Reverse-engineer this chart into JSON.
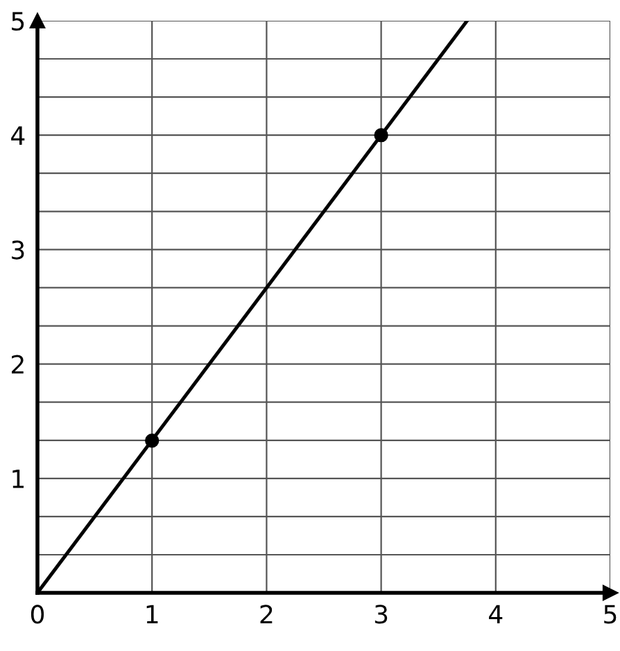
{
  "chart_data": {
    "type": "line",
    "xlim": [
      0,
      5
    ],
    "ylim": [
      0,
      5
    ],
    "xticks": [
      0,
      1,
      2,
      3,
      4,
      5
    ],
    "yticks": [
      {
        "value": 0.333,
        "label": null
      },
      {
        "value": 0.667,
        "label": null
      },
      1,
      {
        "value": 1.333,
        "label": null
      },
      {
        "value": 1.667,
        "label": null
      },
      2,
      {
        "value": 2.333,
        "label": null
      },
      {
        "value": 2.667,
        "label": null
      },
      3,
      {
        "value": 3.333,
        "label": null
      },
      {
        "value": 3.667,
        "label": null
      },
      4,
      {
        "value": 4.333,
        "label": null
      },
      {
        "value": 4.667,
        "label": null
      },
      5
    ],
    "grid": true,
    "series": [
      {
        "color": "#000000",
        "x": [
          0,
          3.75
        ],
        "values": [
          0,
          5
        ]
      },
      {
        "type": "scatter",
        "color": "#000000",
        "x": [
          1,
          3
        ],
        "values": [
          1.33,
          4
        ],
        "marker": "circle"
      }
    ]
  }
}
